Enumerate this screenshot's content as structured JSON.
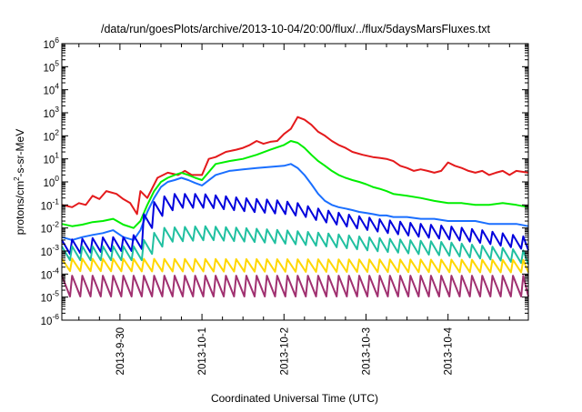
{
  "chart_data": {
    "type": "line",
    "title": "/data/run/goesPlots/archive/2013-10-04/20:00/flux/../flux/5daysMarsFluxes.txt",
    "xlabel": "Coordinated Universal Time (UTC)",
    "ylabel": {
      "prefix": "protons/cm",
      "sup": "2",
      "suffix": "-s-sr-MeV"
    },
    "x_unit": "hours since 2013-09-29 00:00 UTC",
    "xlim": [
      7,
      143.5
    ],
    "ylog": true,
    "ylim": [
      1e-06,
      1000000.0
    ],
    "x_ticks": [
      {
        "label": "2013-9-30",
        "x": 24
      },
      {
        "label": "2013-10-1",
        "x": 48
      },
      {
        "label": "2013-10-2",
        "x": 72
      },
      {
        "label": "2013-10-3",
        "x": 96
      },
      {
        "label": "2013-10-4",
        "x": 120
      }
    ],
    "y_ticks": [
      {
        "base": "10",
        "exp": "6",
        "value": 1000000.0
      },
      {
        "base": "10",
        "exp": "5",
        "value": 100000.0
      },
      {
        "base": "10",
        "exp": "4",
        "value": 10000.0
      },
      {
        "base": "10",
        "exp": "3",
        "value": 1000.0
      },
      {
        "base": "10",
        "exp": "2",
        "value": 100.0
      },
      {
        "base": "10",
        "exp": "1",
        "value": 10.0
      },
      {
        "base": "10",
        "exp": "0",
        "value": 1
      },
      {
        "base": "10",
        "exp": "-1",
        "value": 0.1
      },
      {
        "base": "10",
        "exp": "-2",
        "value": 0.01
      },
      {
        "base": "10",
        "exp": "-3",
        "value": 0.001
      },
      {
        "base": "10",
        "exp": "-4",
        "value": 0.0001
      },
      {
        "base": "10",
        "exp": "-5",
        "value": 1e-05
      },
      {
        "base": "10",
        "exp": "-6",
        "value": 1e-06
      }
    ],
    "grid": false,
    "legend": "none",
    "series": [
      {
        "color": "#e41a1c",
        "sawtooth": false,
        "x": [
          7,
          10,
          12,
          14,
          16,
          18,
          20,
          23,
          25,
          27,
          29,
          30,
          32,
          35,
          38,
          41,
          43,
          45,
          48,
          50,
          52,
          55,
          58,
          60,
          62,
          64,
          66,
          68,
          70,
          72,
          74,
          76,
          78,
          80,
          82,
          84,
          86,
          88,
          90,
          92,
          95,
          98,
          100,
          102,
          104,
          106,
          108,
          110,
          112,
          114,
          116,
          118,
          120,
          122,
          124,
          126,
          128,
          130,
          132,
          134,
          136,
          138,
          140,
          143.5
        ],
        "y": [
          0.1,
          0.08,
          0.12,
          0.1,
          0.25,
          0.18,
          0.4,
          0.3,
          0.18,
          0.12,
          0.04,
          0.4,
          0.2,
          1.5,
          2.5,
          2,
          3,
          2,
          2,
          10,
          12,
          20,
          25,
          30,
          40,
          60,
          45,
          55,
          60,
          120,
          200,
          650,
          500,
          300,
          150,
          100,
          60,
          40,
          30,
          20,
          15,
          12,
          11,
          10,
          8,
          5,
          4,
          3,
          3.5,
          3,
          2.5,
          3,
          7,
          5,
          4,
          3,
          2.5,
          3,
          2,
          2.5,
          3,
          2,
          3,
          2.5
        ]
      },
      {
        "color": "#00ee00",
        "sawtooth": false,
        "x": [
          7,
          10,
          13,
          16,
          19,
          22,
          25,
          28,
          30,
          32,
          34,
          36,
          38,
          40,
          42,
          44,
          46,
          48,
          52,
          56,
          60,
          64,
          68,
          72,
          74,
          76,
          78,
          80,
          82,
          84,
          86,
          88,
          90,
          92,
          94,
          96,
          98,
          100,
          102,
          104,
          108,
          112,
          116,
          120,
          124,
          128,
          132,
          136,
          140,
          143.5
        ],
        "y": [
          0.015,
          0.012,
          0.014,
          0.018,
          0.02,
          0.025,
          0.014,
          0.01,
          0.02,
          0.1,
          0.4,
          1,
          1.5,
          2,
          2.5,
          2,
          1.5,
          1.2,
          6,
          8,
          10,
          15,
          25,
          40,
          60,
          50,
          30,
          15,
          8,
          5,
          3,
          2,
          1.5,
          1.2,
          1,
          0.8,
          0.6,
          0.5,
          0.4,
          0.3,
          0.25,
          0.2,
          0.15,
          0.12,
          0.12,
          0.1,
          0.1,
          0.12,
          0.1,
          0.08
        ]
      },
      {
        "color": "#1a6fff",
        "sawtooth": false,
        "x": [
          7,
          10,
          13,
          16,
          19,
          22,
          25,
          28,
          30,
          32,
          34,
          36,
          38,
          40,
          42,
          44,
          46,
          48,
          52,
          56,
          60,
          64,
          68,
          72,
          74,
          76,
          78,
          80,
          82,
          84,
          86,
          88,
          90,
          92,
          94,
          96,
          98,
          100,
          102,
          104,
          108,
          112,
          116,
          120,
          124,
          128,
          132,
          136,
          140,
          143.5
        ],
        "y": [
          0.004,
          0.003,
          0.004,
          0.005,
          0.006,
          0.008,
          0.004,
          0.003,
          0.008,
          0.05,
          0.2,
          0.6,
          1,
          1.2,
          1.5,
          1.2,
          0.9,
          0.7,
          2,
          3,
          3.5,
          4,
          4.5,
          5,
          6,
          4,
          2,
          0.8,
          0.3,
          0.15,
          0.1,
          0.08,
          0.07,
          0.06,
          0.05,
          0.045,
          0.04,
          0.035,
          0.035,
          0.03,
          0.03,
          0.025,
          0.025,
          0.02,
          0.02,
          0.02,
          0.015,
          0.015,
          0.015,
          0.012
        ]
      },
      {
        "color": "#0000dd",
        "sawtooth": true,
        "amp": 4,
        "x": [
          7,
          20,
          27,
          29,
          31,
          35,
          40,
          48,
          60,
          70,
          76,
          80,
          90,
          100,
          110,
          120,
          130,
          143.5
        ],
        "y": [
          0.0015,
          0.002,
          0.002,
          0.003,
          0.02,
          0.1,
          0.15,
          0.15,
          0.1,
          0.08,
          0.06,
          0.04,
          0.02,
          0.012,
          0.008,
          0.006,
          0.004,
          0.002
        ]
      },
      {
        "color": "#20c0a0",
        "sawtooth": true,
        "amp": 4,
        "x": [
          7,
          28,
          31,
          36,
          48,
          60,
          72,
          84,
          96,
          108,
          120,
          132,
          143.5
        ],
        "y": [
          0.0008,
          0.0008,
          0.0015,
          0.005,
          0.006,
          0.005,
          0.004,
          0.003,
          0.002,
          0.0015,
          0.0012,
          0.0008,
          0.0005
        ]
      },
      {
        "color": "#ffd700",
        "sawtooth": true,
        "amp": 3.5,
        "x": [
          7,
          143.5
        ],
        "y": [
          0.00025,
          0.00022
        ]
      },
      {
        "color": "#a03070",
        "sawtooth": true,
        "amp": 8,
        "x": [
          7,
          143.5
        ],
        "y": [
          3e-05,
          3e-05
        ]
      }
    ]
  }
}
